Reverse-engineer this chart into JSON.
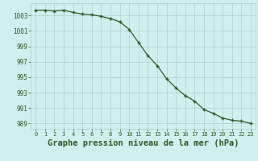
{
  "x": [
    0,
    1,
    2,
    3,
    4,
    5,
    6,
    7,
    8,
    9,
    10,
    11,
    12,
    13,
    14,
    15,
    16,
    17,
    18,
    19,
    20,
    21,
    22,
    23
  ],
  "y": [
    1003.7,
    1003.7,
    1003.6,
    1003.7,
    1003.4,
    1003.2,
    1003.1,
    1002.9,
    1002.6,
    1002.2,
    1001.2,
    999.5,
    997.8,
    996.5,
    994.8,
    993.6,
    992.6,
    991.9,
    990.8,
    990.3,
    989.7,
    989.4,
    989.3,
    989.0
  ],
  "line_color": "#2d5a27",
  "marker_color": "#2d5a27",
  "bg_color": "#d0f0f0",
  "grid_color": "#aacece",
  "xlabel": "Graphe pression niveau de la mer (hPa)",
  "xlabel_fontsize": 7.5,
  "ylabel_ticks": [
    989,
    991,
    993,
    995,
    997,
    999,
    1001,
    1003
  ],
  "xtick_labels": [
    "0",
    "1",
    "2",
    "3",
    "4",
    "5",
    "6",
    "7",
    "8",
    "9",
    "10",
    "11",
    "12",
    "13",
    "14",
    "15",
    "16",
    "17",
    "18",
    "19",
    "20",
    "21",
    "22",
    "23"
  ],
  "ylim": [
    988.3,
    1004.6
  ],
  "xlim": [
    -0.5,
    23.5
  ]
}
